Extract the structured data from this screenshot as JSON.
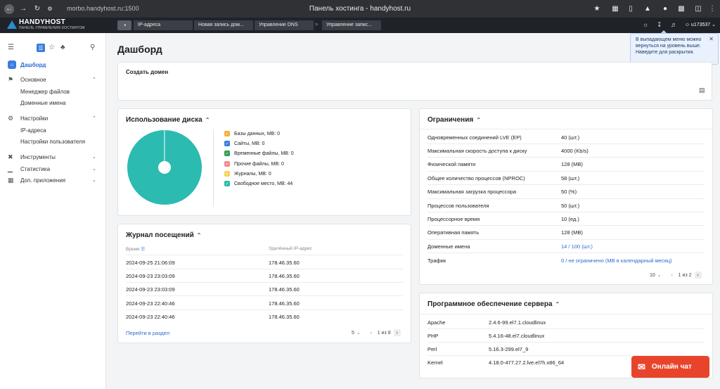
{
  "browser": {
    "url": "morbo.handyhost.ru:1500",
    "title": "Панель хостинга - handyhost.ru"
  },
  "header": {
    "logo_title": "HANDYHOST",
    "logo_subtitle": "ПАНЕЛЬ УПРАВЛЕНИЯ ХОСТИНГОМ",
    "tabs": [
      "IP-адреса",
      "Новая запись дом...",
      "Управление DNS",
      "Управление запис..."
    ],
    "tab_separator": ">",
    "user": "u173537"
  },
  "sidebar": {
    "items": [
      {
        "label": "Дашборд",
        "icon": "home-icon"
      },
      {
        "label": "Основное",
        "icon": "flag-icon"
      },
      {
        "label": "Менеджер файлов"
      },
      {
        "label": "Доменные имена"
      },
      {
        "label": "Настройки",
        "icon": "gear-icon"
      },
      {
        "label": "IP-адреса"
      },
      {
        "label": "Настройки пользователя"
      },
      {
        "label": "Инструменты",
        "icon": "tools-icon"
      },
      {
        "label": "Статистика",
        "icon": "stats-icon"
      },
      {
        "label": "Доп. приложения",
        "icon": "apps-icon"
      }
    ]
  },
  "page": {
    "title": "Дашборд"
  },
  "create_domain": {
    "title": "Создать домен"
  },
  "disk": {
    "title": "Использование диска",
    "legend": [
      {
        "label": "Базы данных, MB: 0",
        "color": "#f2b233"
      },
      {
        "label": "Сайты, MB: 0",
        "color": "#3b7be0"
      },
      {
        "label": "Временные файлы, MB: 0",
        "color": "#2e9e57"
      },
      {
        "label": "Прочие файлы, MB: 0",
        "color": "#f28a8a"
      },
      {
        "label": "Журналы, MB: 0",
        "color": "#f5d45a"
      },
      {
        "label": "Свободное место, MB: 44",
        "color": "#2bbbb1"
      }
    ]
  },
  "chart_data": {
    "type": "pie",
    "categories": [
      "Базы данных",
      "Сайты",
      "Временные файлы",
      "Прочие файлы",
      "Журналы",
      "Свободное место"
    ],
    "values": [
      0,
      0,
      0,
      0,
      0,
      44
    ],
    "title": "Использование диска",
    "legend_position": "right"
  },
  "visits": {
    "title": "Журнал посещений",
    "col_time": "Время",
    "col_ip": "Удалённый IP-адрес",
    "rows": [
      {
        "time": "2024-09-25 21:06:09",
        "ip": "178.46.35.60"
      },
      {
        "time": "2024-09-23 23:03:09",
        "ip": "178.46.35.60"
      },
      {
        "time": "2024-09-23 23:03:09",
        "ip": "178.46.35.60"
      },
      {
        "time": "2024-09-23 22:40:46",
        "ip": "178.46.35.60"
      },
      {
        "time": "2024-09-23 22:40:46",
        "ip": "178.46.35.60"
      }
    ],
    "link": "Перейти в раздел",
    "page_size": "5",
    "current_page": "1",
    "of_label": "из",
    "total_pages": "8"
  },
  "limits": {
    "title": "Ограничения",
    "rows": [
      {
        "label": "Одновременных соединений LVE (EP)",
        "value": "40 (шт.)",
        "link": false
      },
      {
        "label": "Максимальная скорость доступа к диску",
        "value": "4000 (Kb/s)",
        "link": false
      },
      {
        "label": "Физической памяти",
        "value": "128 (MB)",
        "link": false
      },
      {
        "label": "Общее количество процессов (NPROC)",
        "value": "58 (шт.)",
        "link": false
      },
      {
        "label": "Максимальная загрузка процессора",
        "value": "50 (%)",
        "link": false
      },
      {
        "label": "Процессов пользователя",
        "value": "50 (шт.)",
        "link": false
      },
      {
        "label": "Процессорное время",
        "value": "10 (ед.)",
        "link": false
      },
      {
        "label": "Оперативная память",
        "value": "128 (MB)",
        "link": false
      },
      {
        "label": "Доменные имена",
        "value": "14 / 100 (шт.)",
        "link": true
      },
      {
        "label": "Трафик",
        "value": "0 / не ограничено (MB в календарный месяц)",
        "link": true
      }
    ],
    "page_size": "10",
    "current_page": "1",
    "of_label": "из",
    "total_pages": "2"
  },
  "software": {
    "title": "Программное обеспечение сервера",
    "rows": [
      {
        "label": "Apache",
        "value": "2.4.6-99.el7.1.cloudlinux"
      },
      {
        "label": "PHP",
        "value": "5.4.16-48.el7.cloudlinux"
      },
      {
        "label": "Perl",
        "value": "5.16.3-299.el7_9"
      },
      {
        "label": "Kernel",
        "value": "4.18.0-477.27.2.lve.el7h.x86_64"
      }
    ]
  },
  "tooltip": {
    "text": "В выпадающем меню можно вернуться на уровень выше. Наведите для раскрытия."
  },
  "chat": {
    "label": "Онлайн чат"
  }
}
